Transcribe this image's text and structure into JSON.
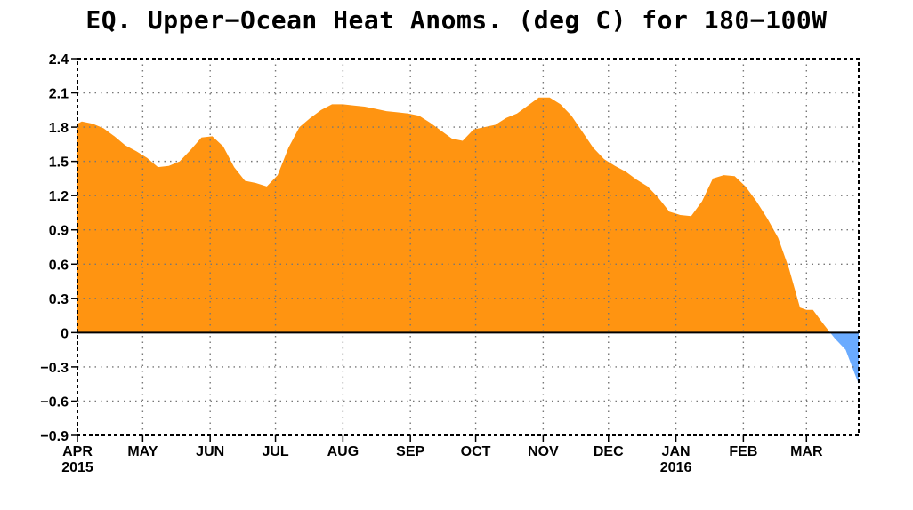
{
  "chart_data": {
    "type": "area",
    "title": "EQ. Upper−Ocean Heat Anoms. (deg C) for 180−100W",
    "xlabel": "",
    "ylabel": "",
    "ylim": [
      -0.9,
      2.4
    ],
    "yticks": [
      "2.4",
      "2.1",
      "1.8",
      "1.5",
      "1.2",
      "0.9",
      "0.6",
      "0.3",
      "0",
      "−0.3",
      "−0.6",
      "−0.9"
    ],
    "ytick_values": [
      2.4,
      2.1,
      1.8,
      1.5,
      1.2,
      0.9,
      0.6,
      0.3,
      0,
      -0.3,
      -0.6,
      -0.9
    ],
    "x_range": [
      "2015-04-01",
      "2016-03-25"
    ],
    "x_ticks": [
      {
        "date": "2015-04-01",
        "label": "APR",
        "sublabel": "2015"
      },
      {
        "date": "2015-05-01",
        "label": "MAY",
        "sublabel": ""
      },
      {
        "date": "2015-06-01",
        "label": "JUN",
        "sublabel": ""
      },
      {
        "date": "2015-07-01",
        "label": "JUL",
        "sublabel": ""
      },
      {
        "date": "2015-08-01",
        "label": "AUG",
        "sublabel": ""
      },
      {
        "date": "2015-09-01",
        "label": "SEP",
        "sublabel": ""
      },
      {
        "date": "2015-10-01",
        "label": "OCT",
        "sublabel": ""
      },
      {
        "date": "2015-11-01",
        "label": "NOV",
        "sublabel": ""
      },
      {
        "date": "2015-12-01",
        "label": "DEC",
        "sublabel": ""
      },
      {
        "date": "2016-01-01",
        "label": "JAN",
        "sublabel": "2016"
      },
      {
        "date": "2016-02-01",
        "label": "FEB",
        "sublabel": ""
      },
      {
        "date": "2016-03-01",
        "label": "MAR",
        "sublabel": ""
      }
    ],
    "grid": true,
    "positive_color": "#FF9411",
    "negative_color": "#6AABFF",
    "series": [
      {
        "x": [
          "2015-04-01",
          "2015-04-03",
          "2015-04-08",
          "2015-04-13",
          "2015-04-18",
          "2015-04-23",
          "2015-04-28",
          "2015-05-03",
          "2015-05-08",
          "2015-05-13",
          "2015-05-18",
          "2015-05-23",
          "2015-05-28",
          "2015-06-02",
          "2015-06-07",
          "2015-06-12",
          "2015-06-17",
          "2015-06-22",
          "2015-06-27",
          "2015-07-02",
          "2015-07-07",
          "2015-07-12",
          "2015-07-17",
          "2015-07-22",
          "2015-07-27",
          "2015-08-01",
          "2015-08-06",
          "2015-08-11",
          "2015-08-16",
          "2015-08-21",
          "2015-08-26",
          "2015-08-31",
          "2015-09-05",
          "2015-09-10",
          "2015-09-15",
          "2015-09-20",
          "2015-09-25",
          "2015-09-30",
          "2015-10-05",
          "2015-10-10",
          "2015-10-15",
          "2015-10-20",
          "2015-10-25",
          "2015-10-30",
          "2015-11-04",
          "2015-11-09",
          "2015-11-14",
          "2015-11-19",
          "2015-11-24",
          "2015-11-29",
          "2015-12-04",
          "2015-12-09",
          "2015-12-14",
          "2015-12-19",
          "2015-12-24",
          "2015-12-29",
          "2016-01-03",
          "2016-01-08",
          "2016-01-13",
          "2016-01-18",
          "2016-01-23",
          "2016-01-28",
          "2016-02-02",
          "2016-02-07",
          "2016-02-12",
          "2016-02-17",
          "2016-02-22",
          "2016-02-27",
          "2016-03-01",
          "2016-03-04",
          "2016-03-09",
          "2016-03-14",
          "2016-03-19",
          "2016-03-25"
        ],
        "values": [
          1.83,
          1.85,
          1.83,
          1.79,
          1.72,
          1.64,
          1.59,
          1.53,
          1.45,
          1.46,
          1.5,
          1.6,
          1.71,
          1.72,
          1.63,
          1.45,
          1.33,
          1.31,
          1.28,
          1.38,
          1.62,
          1.8,
          1.88,
          1.95,
          2.0,
          2.0,
          1.99,
          1.98,
          1.96,
          1.94,
          1.93,
          1.92,
          1.9,
          1.84,
          1.77,
          1.7,
          1.68,
          1.78,
          1.8,
          1.82,
          1.88,
          1.92,
          1.99,
          2.06,
          2.06,
          2.0,
          1.9,
          1.76,
          1.62,
          1.52,
          1.46,
          1.41,
          1.34,
          1.28,
          1.18,
          1.06,
          1.03,
          1.02,
          1.15,
          1.35,
          1.38,
          1.37,
          1.28,
          1.15,
          1.0,
          0.83,
          0.56,
          0.22,
          0.2,
          0.2,
          0.07,
          -0.05,
          -0.15,
          -0.45
        ]
      }
    ]
  }
}
